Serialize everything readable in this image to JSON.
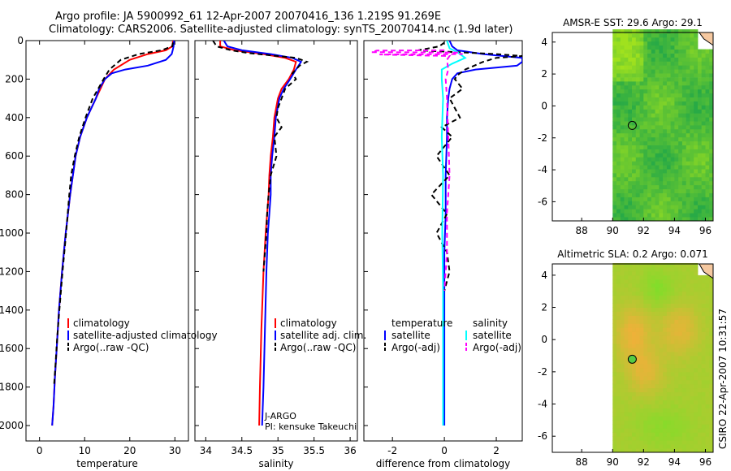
{
  "header": {
    "line1": "Argo profile: JA 5900992_61 12-Apr-2007 20070416_136 1.219S 91.269E",
    "line2": "Climatology: CARS2006. Satellite-adjusted climatology: synTS_20070414.nc (1.9d later)"
  },
  "side_stamp": "CSIRO 22-Apr-2007 10:31:57",
  "chart_data": [
    {
      "id": "temperature",
      "type": "line",
      "xlabel": "temperature",
      "ylabel": "",
      "xlim": [
        -3,
        33
      ],
      "ylim": [
        2080,
        0
      ],
      "xticks": [
        0,
        10,
        20,
        30
      ],
      "yticks": [
        0,
        200,
        400,
        600,
        800,
        1000,
        1200,
        1400,
        1600,
        1800,
        2000
      ],
      "legend": [
        "climatology",
        "satellite-adjusted climatology",
        "Argo(..raw -QC)"
      ],
      "legend_position": "lower-right",
      "series": [
        {
          "name": "climatology",
          "color": "#ff0000",
          "dash": "solid",
          "x": [
            29.6,
            29.4,
            28,
            24,
            20,
            16.5,
            14.5,
            13.5,
            12.5,
            10.5,
            9,
            8,
            6.8,
            5.8,
            5,
            4.3,
            3.8,
            3.4,
            3.1,
            2.8
          ],
          "y": [
            0,
            30,
            50,
            70,
            100,
            150,
            200,
            250,
            300,
            400,
            500,
            600,
            800,
            1000,
            1200,
            1400,
            1600,
            1750,
            1900,
            2000
          ]
        },
        {
          "name": "satellite-adjusted climatology",
          "color": "#0000ff",
          "dash": "solid",
          "x": [
            29.8,
            29.7,
            29.5,
            29.3,
            28,
            24,
            19,
            16,
            14.5,
            13.2,
            12.5,
            10.5,
            9,
            8,
            6.8,
            5.8,
            5,
            4.3,
            3.8,
            3.4,
            3.1,
            2.8
          ],
          "y": [
            0,
            30,
            50,
            70,
            100,
            130,
            150,
            170,
            200,
            250,
            300,
            400,
            500,
            600,
            800,
            1000,
            1200,
            1400,
            1600,
            1750,
            1900,
            2000
          ]
        },
        {
          "name": "Argo(..raw -QC)",
          "color": "#000000",
          "dash": "dashed",
          "x": [
            29.6,
            29.4,
            27,
            22,
            18,
            15.5,
            14.2,
            13,
            11.8,
            10.2,
            8.8,
            7.8,
            7,
            6.6,
            5.9,
            5.1,
            4.4,
            3.9,
            3.5,
            3.2
          ],
          "y": [
            10,
            30,
            50,
            70,
            100,
            150,
            200,
            250,
            300,
            400,
            500,
            600,
            700,
            800,
            1000,
            1200,
            1400,
            1550,
            1700,
            1800
          ]
        }
      ]
    },
    {
      "id": "salinity",
      "type": "line",
      "xlabel": "salinity",
      "ylabel": "",
      "xlim": [
        33.85,
        36.1
      ],
      "ylim": [
        2080,
        0
      ],
      "xticks": [
        34,
        34.5,
        35,
        35.5,
        36
      ],
      "xtick_labels": [
        "34",
        "34.5",
        "35",
        "35.5",
        "36"
      ],
      "legend": [
        "climatology",
        "satellite adj. clim.",
        "Argo(..raw -QC)"
      ],
      "legend_position": "lower-right",
      "annotations": [
        "J-ARGO",
        "PI: kensuke Takeuchi"
      ],
      "series": [
        {
          "name": "climatology",
          "color": "#ff0000",
          "dash": "solid",
          "x": [
            34.2,
            34.2,
            34.4,
            34.8,
            35.1,
            35.25,
            35.22,
            35.15,
            35.05,
            35.0,
            34.95,
            34.93,
            34.9,
            34.88,
            34.87,
            34.85,
            34.83,
            34.8,
            34.77,
            34.75,
            34.74
          ],
          "y": [
            0,
            30,
            50,
            70,
            90,
            110,
            150,
            200,
            250,
            300,
            400,
            500,
            600,
            700,
            800,
            900,
            1000,
            1200,
            1500,
            1800,
            2000
          ]
        },
        {
          "name": "satellite adj. clim.",
          "color": "#0000ff",
          "dash": "solid",
          "x": [
            34.25,
            34.3,
            34.5,
            34.9,
            35.2,
            35.32,
            35.25,
            35.17,
            35.08,
            35.02,
            34.97,
            34.95,
            34.92,
            34.9,
            34.9,
            34.88,
            34.86,
            34.84,
            34.82,
            34.8,
            34.78
          ],
          "y": [
            0,
            30,
            50,
            70,
            90,
            110,
            150,
            200,
            250,
            300,
            400,
            500,
            600,
            700,
            800,
            900,
            1000,
            1200,
            1500,
            1800,
            2000
          ]
        },
        {
          "name": "Argo(..raw -QC)",
          "color": "#000000",
          "dash": "dashed",
          "x": [
            34.1,
            34.15,
            34.35,
            34.6,
            35.0,
            35.25,
            35.4,
            35.3,
            35.2,
            35.25,
            35.1,
            35.05,
            35.0,
            34.98,
            35.05,
            34.95,
            34.98,
            34.9,
            34.87,
            34.85,
            34.84,
            34.8
          ],
          "y": [
            0,
            30,
            50,
            65,
            80,
            90,
            110,
            130,
            170,
            200,
            250,
            300,
            350,
            400,
            450,
            500,
            600,
            700,
            800,
            900,
            1000,
            1200
          ]
        }
      ]
    },
    {
      "id": "difference",
      "type": "line",
      "xlabel": "difference from climatology",
      "ylabel": "",
      "xlim": [
        -3.1,
        3.0
      ],
      "ylim": [
        2080,
        0
      ],
      "xticks": [
        -2,
        0,
        2
      ],
      "legend_groups": [
        {
          "title": "temperature",
          "items": [
            "satellite",
            "Argo(-adj)"
          ]
        },
        {
          "title": "salinity",
          "items": [
            "satellite",
            "Argo(-adj)"
          ]
        }
      ],
      "legend_position": "lower-right",
      "series": [
        {
          "name": "temperature satellite",
          "color": "#0000ff",
          "dash": "solid",
          "x": [
            0.2,
            0.3,
            0.5,
            1.5,
            3.0,
            3.0,
            2.8,
            1.2,
            0.5,
            0.3,
            0.2,
            0.15,
            0.1,
            0.1,
            0.05,
            0.05,
            0.0,
            0.0,
            0.0,
            0.0
          ],
          "y": [
            0,
            30,
            50,
            70,
            90,
            110,
            130,
            150,
            170,
            200,
            250,
            300,
            400,
            500,
            700,
            900,
            1100,
            1400,
            1700,
            2000
          ]
        },
        {
          "name": "temperature Argo(-adj)",
          "color": "#000000",
          "dash": "dashed",
          "x": [
            0,
            -0.2,
            -1.0,
            2.0,
            3.0,
            2.0,
            1.5,
            0.8,
            0.5,
            0.4,
            0.7,
            0.2,
            0.6,
            -0.1,
            0.3,
            -0.3,
            0.2,
            -0.5,
            0.1,
            -0.3,
            0.1,
            0.2,
            0.0
          ],
          "y": [
            10,
            30,
            50,
            70,
            80,
            90,
            110,
            150,
            180,
            200,
            250,
            300,
            400,
            450,
            500,
            600,
            700,
            800,
            900,
            1000,
            1100,
            1200,
            1300
          ]
        },
        {
          "name": "salinity satellite",
          "color": "#00ffff",
          "dash": "solid",
          "x": [
            0.1,
            0.2,
            0.5,
            0.8,
            0.3,
            -0.1,
            -0.1,
            -0.05,
            -0.1,
            -0.05,
            -0.08,
            -0.05,
            -0.05,
            -0.05
          ],
          "y": [
            0,
            40,
            60,
            90,
            120,
            150,
            200,
            300,
            500,
            700,
            1000,
            1300,
            1600,
            2000
          ]
        },
        {
          "name": "salinity Argo(-adj)",
          "color": "#ff00ff",
          "dash": "dashed",
          "x": [
            0.0,
            -2.6,
            -2.8,
            0.5,
            0.7,
            -2.5,
            0.2,
            0.1,
            0.15,
            0.05,
            0.1,
            0.15,
            0.2,
            0.1,
            0.1,
            0.05,
            0.0
          ],
          "y": [
            50,
            52,
            60,
            62,
            70,
            72,
            80,
            100,
            150,
            200,
            300,
            500,
            700,
            900,
            1100,
            1200,
            1300
          ]
        }
      ]
    },
    {
      "id": "sst_map",
      "type": "heatmap",
      "title": "AMSR-E SST: 29.6 Argo: 29.1",
      "xlim": [
        86.1,
        96.5
      ],
      "ylim": [
        -7.2,
        4.6
      ],
      "xticks": [
        88,
        90,
        92,
        94,
        96
      ],
      "yticks": [
        4,
        2,
        0,
        -2,
        -4,
        -6
      ],
      "marker": {
        "lon": 91.269,
        "lat": -1.219
      }
    },
    {
      "id": "sla_map",
      "type": "heatmap",
      "title": "Altimetric SLA: 0.2 Argo: 0.071",
      "xlim": [
        86.1,
        96.5
      ],
      "ylim": [
        -7.0,
        4.7
      ],
      "xticks": [
        88,
        90,
        92,
        94,
        96
      ],
      "yticks": [
        4,
        2,
        0,
        -2,
        -4,
        -6
      ],
      "marker": {
        "lon": 91.269,
        "lat": -1.219
      }
    }
  ]
}
